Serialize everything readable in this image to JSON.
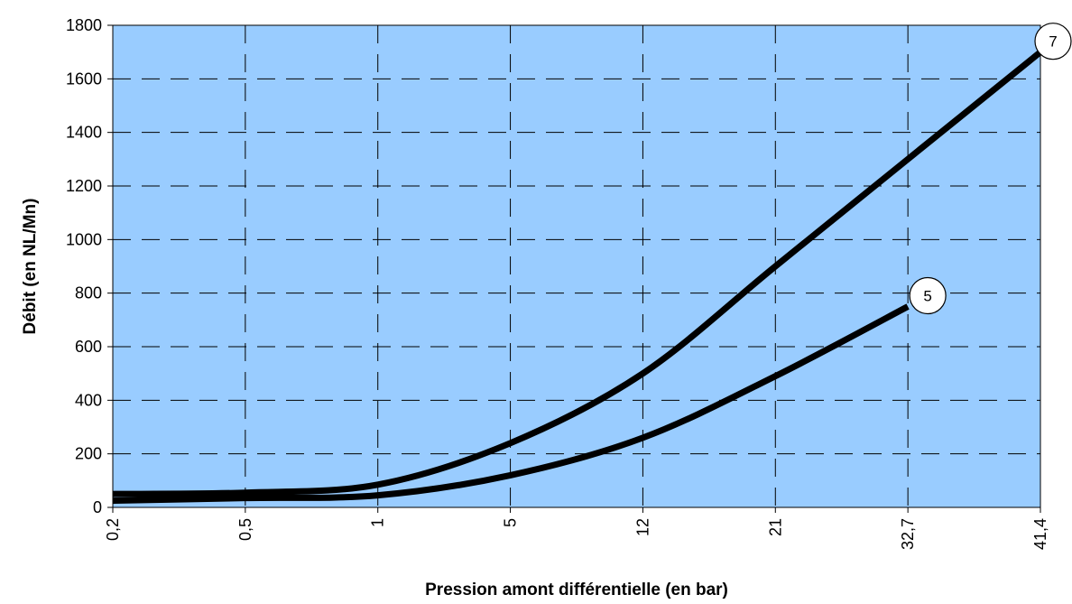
{
  "chart_data": {
    "type": "line",
    "title": "",
    "xlabel": "Pression amont différentielle (en bar)",
    "ylabel": "Débit (en NL/Mn)",
    "categories": [
      "0,2",
      "0,5",
      "1",
      "5",
      "12",
      "21",
      "32,7",
      "41,4"
    ],
    "ylim": [
      0,
      1800
    ],
    "yticks": [
      0,
      200,
      400,
      600,
      800,
      1000,
      1200,
      1400,
      1600,
      1800
    ],
    "grid": true,
    "colors": {
      "plot_background": "#99ccff",
      "line": "#000000",
      "grid": "#000000"
    },
    "series": [
      {
        "name": "7",
        "values": [
          50,
          55,
          85,
          240,
          500,
          900,
          1300,
          1700
        ]
      },
      {
        "name": "5",
        "values": [
          25,
          35,
          45,
          120,
          260,
          490,
          750,
          null
        ]
      }
    ]
  }
}
